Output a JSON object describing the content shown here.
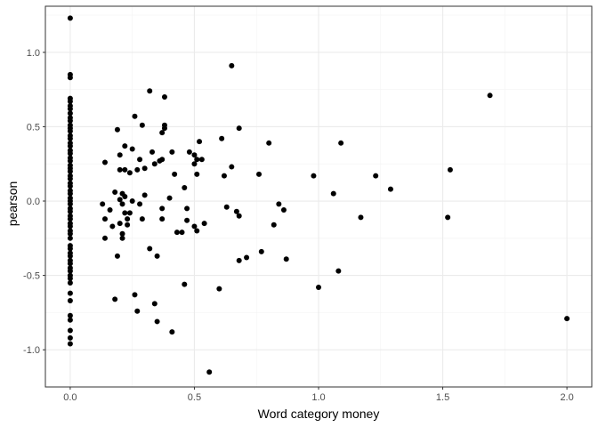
{
  "chart_data": {
    "type": "scatter",
    "xlabel": "Word category money",
    "ylabel": "pearson",
    "xlim": [
      -0.1,
      2.1
    ],
    "ylim": [
      -1.25,
      1.31
    ],
    "x_ticks": [
      0.0,
      0.5,
      1.0,
      1.5,
      2.0
    ],
    "x_tick_labels": [
      "0.0",
      "0.5",
      "1.0",
      "1.5",
      "2.0"
    ],
    "y_ticks": [
      -1.0,
      -0.5,
      0.0,
      0.5,
      1.0
    ],
    "y_tick_labels": [
      "-1.0",
      "-0.5",
      "0.0",
      "0.5",
      "1.0"
    ],
    "grid": true,
    "legend": "none",
    "point_color": "#000000",
    "panel_border_color": "#333333",
    "grid_major_color": "#ebebeb",
    "grid_minor_color": "#f5f5f5",
    "points": [
      [
        0,
        1.23
      ],
      [
        0,
        0.85
      ],
      [
        0,
        0.83
      ],
      [
        0,
        0.69
      ],
      [
        0,
        0.67
      ],
      [
        0,
        0.64
      ],
      [
        0,
        0.62
      ],
      [
        0,
        0.59
      ],
      [
        0,
        0.56
      ],
      [
        0,
        0.54
      ],
      [
        0,
        0.51
      ],
      [
        0,
        0.49
      ],
      [
        0,
        0.47
      ],
      [
        0,
        0.44
      ],
      [
        0,
        0.42
      ],
      [
        0,
        0.39
      ],
      [
        0,
        0.37
      ],
      [
        0,
        0.34
      ],
      [
        0,
        0.32
      ],
      [
        0,
        0.29
      ],
      [
        0,
        0.27
      ],
      [
        0,
        0.24
      ],
      [
        0,
        0.22
      ],
      [
        0,
        0.2
      ],
      [
        0,
        0.17
      ],
      [
        0,
        0.15
      ],
      [
        0,
        0.12
      ],
      [
        0,
        0.1
      ],
      [
        0,
        0.07
      ],
      [
        0,
        0.05
      ],
      [
        0,
        0.02
      ],
      [
        0,
        0.0
      ],
      [
        0,
        -0.02
      ],
      [
        0,
        -0.05
      ],
      [
        0,
        -0.07
      ],
      [
        0,
        -0.1
      ],
      [
        0,
        -0.12
      ],
      [
        0,
        -0.15
      ],
      [
        0,
        -0.17
      ],
      [
        0,
        -0.2
      ],
      [
        0,
        -0.22
      ],
      [
        0,
        -0.25
      ],
      [
        0,
        -0.3
      ],
      [
        0,
        -0.32
      ],
      [
        0,
        -0.35
      ],
      [
        0,
        -0.37
      ],
      [
        0,
        -0.4
      ],
      [
        0,
        -0.42
      ],
      [
        0,
        -0.45
      ],
      [
        0,
        -0.47
      ],
      [
        0,
        -0.5
      ],
      [
        0,
        -0.52
      ],
      [
        0,
        -0.55
      ],
      [
        0,
        -0.62
      ],
      [
        0,
        -0.67
      ],
      [
        0,
        -0.77
      ],
      [
        0,
        -0.8
      ],
      [
        0,
        -0.87
      ],
      [
        0,
        -0.92
      ],
      [
        0,
        -0.96
      ],
      [
        0.13,
        -0.02
      ],
      [
        0.14,
        0.26
      ],
      [
        0.14,
        -0.12
      ],
      [
        0.14,
        -0.25
      ],
      [
        0.16,
        -0.06
      ],
      [
        0.17,
        -0.17
      ],
      [
        0.18,
        -0.66
      ],
      [
        0.18,
        0.06
      ],
      [
        0.19,
        0.48
      ],
      [
        0.19,
        -0.37
      ],
      [
        0.2,
        0.31
      ],
      [
        0.2,
        0.21
      ],
      [
        0.2,
        0.01
      ],
      [
        0.2,
        -0.15
      ],
      [
        0.21,
        0.05
      ],
      [
        0.21,
        -0.02
      ],
      [
        0.21,
        -0.22
      ],
      [
        0.21,
        -0.25
      ],
      [
        0.22,
        0.37
      ],
      [
        0.22,
        0.21
      ],
      [
        0.22,
        0.03
      ],
      [
        0.22,
        -0.08
      ],
      [
        0.23,
        -0.12
      ],
      [
        0.23,
        -0.16
      ],
      [
        0.24,
        0.19
      ],
      [
        0.24,
        -0.08
      ],
      [
        0.25,
        0.35
      ],
      [
        0.25,
        0.0
      ],
      [
        0.26,
        0.57
      ],
      [
        0.26,
        -0.63
      ],
      [
        0.27,
        -0.74
      ],
      [
        0.27,
        0.21
      ],
      [
        0.28,
        0.28
      ],
      [
        0.28,
        -0.02
      ],
      [
        0.29,
        0.51
      ],
      [
        0.29,
        -0.12
      ],
      [
        0.3,
        0.22
      ],
      [
        0.3,
        0.04
      ],
      [
        0.32,
        0.74
      ],
      [
        0.32,
        -0.32
      ],
      [
        0.33,
        0.33
      ],
      [
        0.34,
        0.25
      ],
      [
        0.34,
        -0.69
      ],
      [
        0.35,
        -0.81
      ],
      [
        0.35,
        -0.37
      ],
      [
        0.36,
        0.27
      ],
      [
        0.37,
        0.28
      ],
      [
        0.37,
        0.46
      ],
      [
        0.37,
        -0.05
      ],
      [
        0.37,
        -0.12
      ],
      [
        0.38,
        0.7
      ],
      [
        0.38,
        0.51
      ],
      [
        0.38,
        0.49
      ],
      [
        0.4,
        0.02
      ],
      [
        0.41,
        -0.88
      ],
      [
        0.41,
        0.33
      ],
      [
        0.42,
        0.18
      ],
      [
        0.43,
        -0.21
      ],
      [
        0.45,
        -0.21
      ],
      [
        0.46,
        -0.56
      ],
      [
        0.46,
        0.09
      ],
      [
        0.47,
        -0.05
      ],
      [
        0.47,
        -0.13
      ],
      [
        0.48,
        0.33
      ],
      [
        0.5,
        0.31
      ],
      [
        0.5,
        0.25
      ],
      [
        0.5,
        -0.17
      ],
      [
        0.51,
        0.28
      ],
      [
        0.51,
        0.18
      ],
      [
        0.51,
        -0.2
      ],
      [
        0.52,
        0.4
      ],
      [
        0.53,
        0.28
      ],
      [
        0.54,
        -0.15
      ],
      [
        0.56,
        -1.15
      ],
      [
        0.6,
        -0.59
      ],
      [
        0.61,
        0.42
      ],
      [
        0.62,
        0.17
      ],
      [
        0.63,
        -0.04
      ],
      [
        0.65,
        0.91
      ],
      [
        0.65,
        0.23
      ],
      [
        0.67,
        -0.07
      ],
      [
        0.68,
        0.49
      ],
      [
        0.68,
        -0.1
      ],
      [
        0.68,
        -0.4
      ],
      [
        0.71,
        -0.38
      ],
      [
        0.76,
        0.18
      ],
      [
        0.77,
        -0.34
      ],
      [
        0.8,
        0.39
      ],
      [
        0.82,
        -0.16
      ],
      [
        0.84,
        -0.02
      ],
      [
        0.86,
        -0.06
      ],
      [
        0.87,
        -0.39
      ],
      [
        0.98,
        0.17
      ],
      [
        1.0,
        -0.58
      ],
      [
        1.06,
        0.05
      ],
      [
        1.08,
        -0.47
      ],
      [
        1.09,
        0.39
      ],
      [
        1.17,
        -0.11
      ],
      [
        1.23,
        0.17
      ],
      [
        1.29,
        0.08
      ],
      [
        1.52,
        -0.11
      ],
      [
        1.53,
        0.21
      ],
      [
        1.69,
        0.71
      ],
      [
        2.0,
        -0.79
      ]
    ]
  }
}
